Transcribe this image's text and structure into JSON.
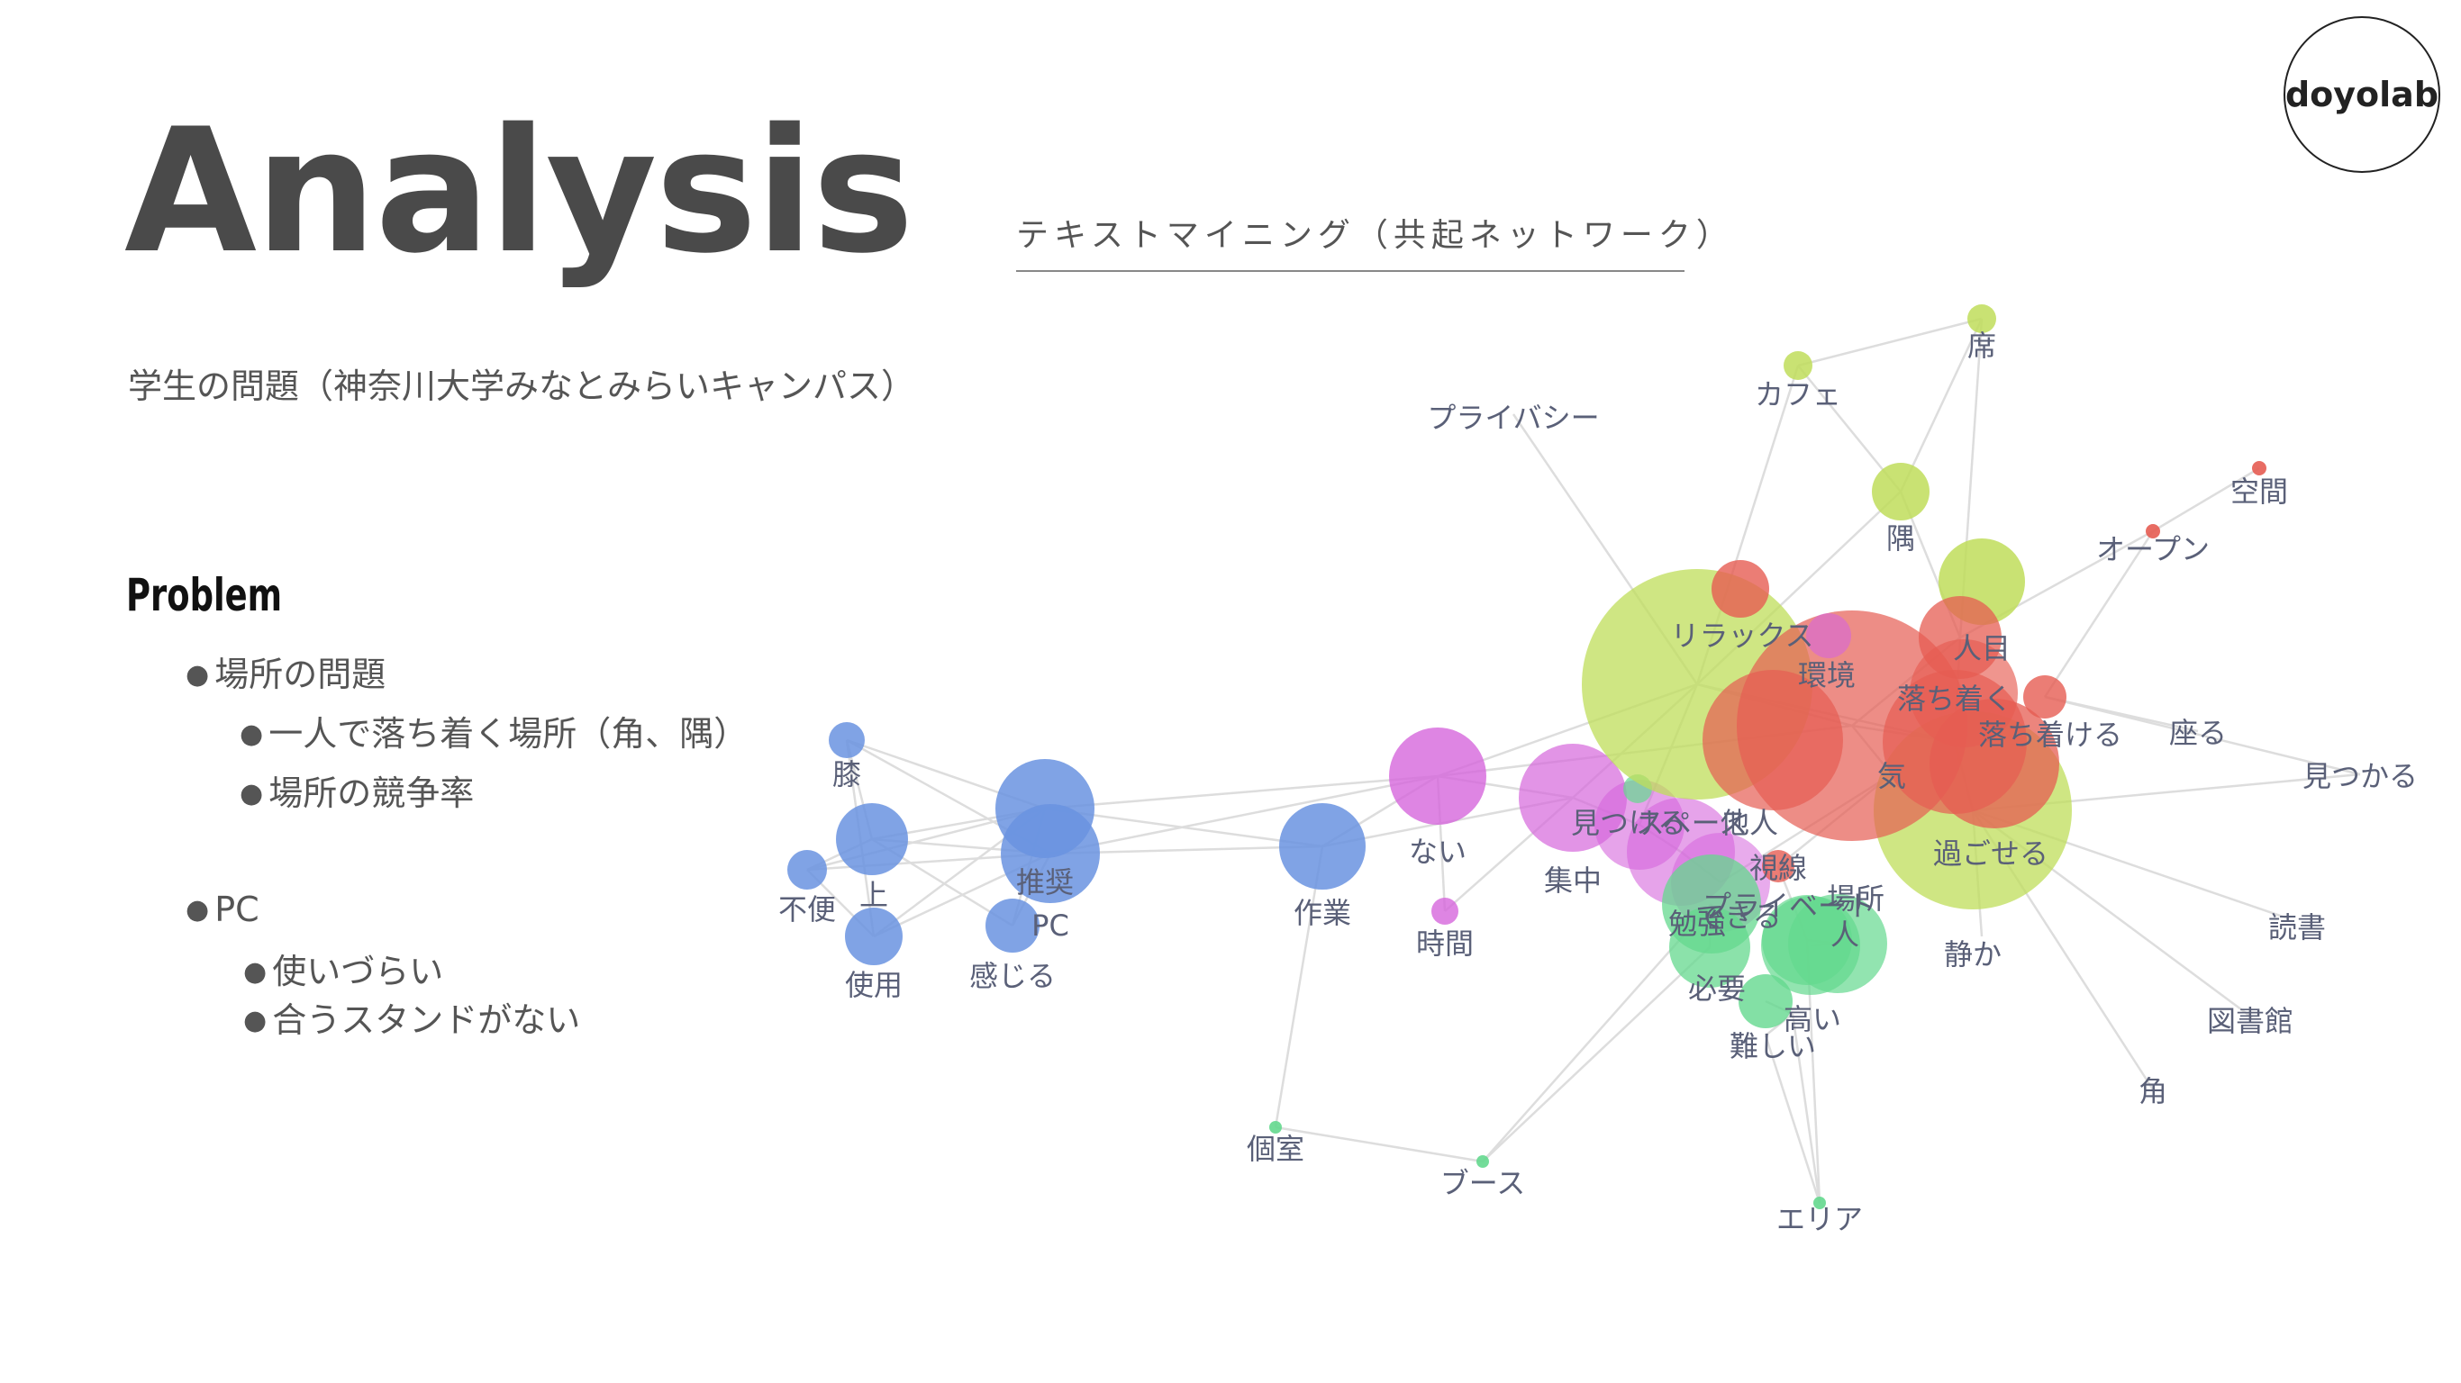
{
  "logo": "doyolab",
  "title": "Analysis",
  "chart_heading": "テキストマイニング（共起ネットワーク）",
  "subtitle": "学生の問題（神奈川大学みなとみらいキャンパス）",
  "problem": {
    "heading": "Problem",
    "bullet_symbol": "●",
    "items": [
      "場所の問題",
      "一人で落ち着く場所（角、隅）",
      "場所の競争率",
      "PC",
      "使いづらい",
      "合うスタンドがない"
    ]
  },
  "network": {
    "colors": {
      "blue": "#6a93e0",
      "purple": "#d666dc",
      "lime": "#bfdd5a",
      "red": "#e65c52",
      "green": "#64d88e",
      "edge": "#dddddd"
    },
    "labels": [
      "膝",
      "上",
      "不便",
      "推奨",
      "PC",
      "使用",
      "感じる",
      "作業",
      "ない",
      "時間",
      "集中",
      "見つける",
      "スペース",
      "他人",
      "個室",
      "ブース",
      "プライバシー",
      "カフェ",
      "席",
      "隅",
      "空間",
      "オープン",
      "リラックス",
      "環境",
      "人目",
      "落ち着く",
      "落ち着ける",
      "座る",
      "見つかる",
      "気",
      "過ごせる",
      "視線",
      "勉強",
      "できる",
      "プライベート",
      "場所",
      "人",
      "必要",
      "高い",
      "難しい",
      "静か",
      "読書",
      "図書館",
      "角",
      "エリア"
    ]
  }
}
